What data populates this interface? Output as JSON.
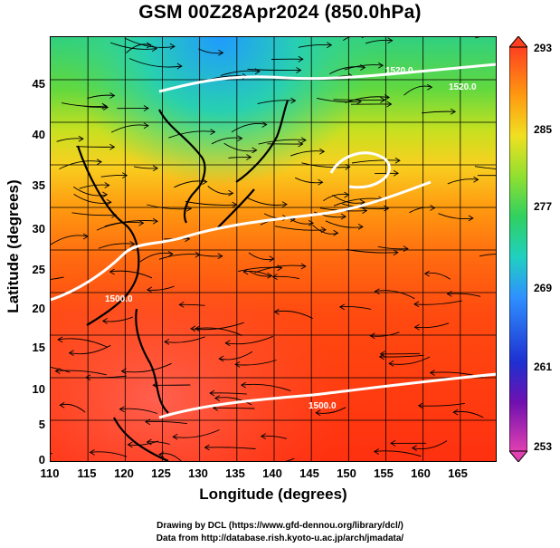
{
  "title": "GSM 00Z28Apr2024 (850.0hPa)",
  "xaxis": {
    "label": "Longitude (degrees)",
    "ticks": [
      "110",
      "115",
      "120",
      "125",
      "130",
      "135",
      "140",
      "145",
      "150",
      "155",
      "160",
      "165"
    ],
    "range": [
      110,
      170
    ]
  },
  "yaxis": {
    "label": "Latitude  (degrees)",
    "ticks": [
      "0",
      "5",
      "10",
      "15",
      "20",
      "25",
      "30",
      "35",
      "40",
      "45"
    ],
    "range": [
      0,
      50
    ]
  },
  "colorbar": {
    "labels": [
      "293",
      "285",
      "277",
      "269",
      "261",
      "253"
    ],
    "range": [
      253,
      293
    ],
    "colors": [
      "#e040b0",
      "#6a10b0",
      "#1e2fd0",
      "#2f8fff",
      "#20d0c0",
      "#30d060",
      "#90e030",
      "#f0e020",
      "#ff9a10",
      "#ff4020"
    ]
  },
  "contours": [
    {
      "label": "1500.0"
    },
    {
      "label": "1500.0"
    },
    {
      "label": "1520.0"
    },
    {
      "label": "1520.0"
    }
  ],
  "credits": {
    "line1": "Drawing by DCL (https://www.gfd-dennou.org/library/dcl/)",
    "line2": "Data from http://database.rish.kyoto-u.ac.jp/arch/jmadata/"
  }
}
